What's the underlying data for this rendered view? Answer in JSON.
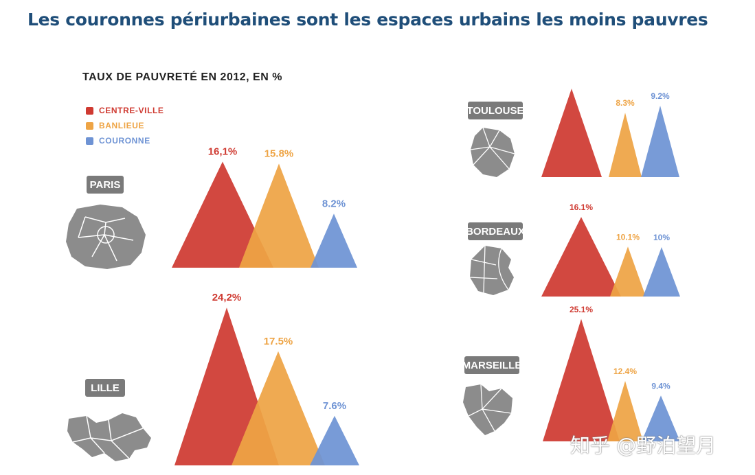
{
  "title": "Les couronnes périurbaines sont les espaces urbains les moins pauvres",
  "watermark": "知乎 @野泊望月",
  "colors": {
    "centre": "#cf3a31",
    "banlieue": "#eea445",
    "couronne": "#6e93d4",
    "city_label_bg": "#7a7a7a",
    "map_grey": "#8c8c8c"
  },
  "icons": [
    "paris-map-icon",
    "lille-map-icon",
    "toulouse-map-icon",
    "bordeaux-map-icon",
    "marseille-map-icon"
  ],
  "chart_data": {
    "type": "area",
    "title": "TAUX DE PAUVRETÉ EN 2012, EN %",
    "legend_position": "top-left",
    "legend": [
      "CENTRE-VILLE",
      "BANLIEUE",
      "COURONNE"
    ],
    "cities": [
      {
        "name": "PARIS",
        "values": [
          16.1,
          15.8,
          8.2
        ],
        "labels": [
          "16,1%",
          "15.8%",
          "8.2%"
        ]
      },
      {
        "name": "LILLE",
        "values": [
          24.2,
          17.5,
          7.6
        ],
        "labels": [
          "24,2%",
          "17.5%",
          "7.6%"
        ]
      },
      {
        "name": "TOULOUSE",
        "values": [
          null,
          8.3,
          9.2
        ],
        "labels": [
          "",
          "8.3%",
          "9.2%"
        ]
      },
      {
        "name": "BORDEAUX",
        "values": [
          16.1,
          10.1,
          10
        ],
        "labels": [
          "16.1%",
          "10.1%",
          "10%"
        ]
      },
      {
        "name": "MARSEILLE",
        "values": [
          25.1,
          12.4,
          9.4
        ],
        "labels": [
          "25.1%",
          "12.4%",
          "9.4%"
        ]
      }
    ]
  }
}
